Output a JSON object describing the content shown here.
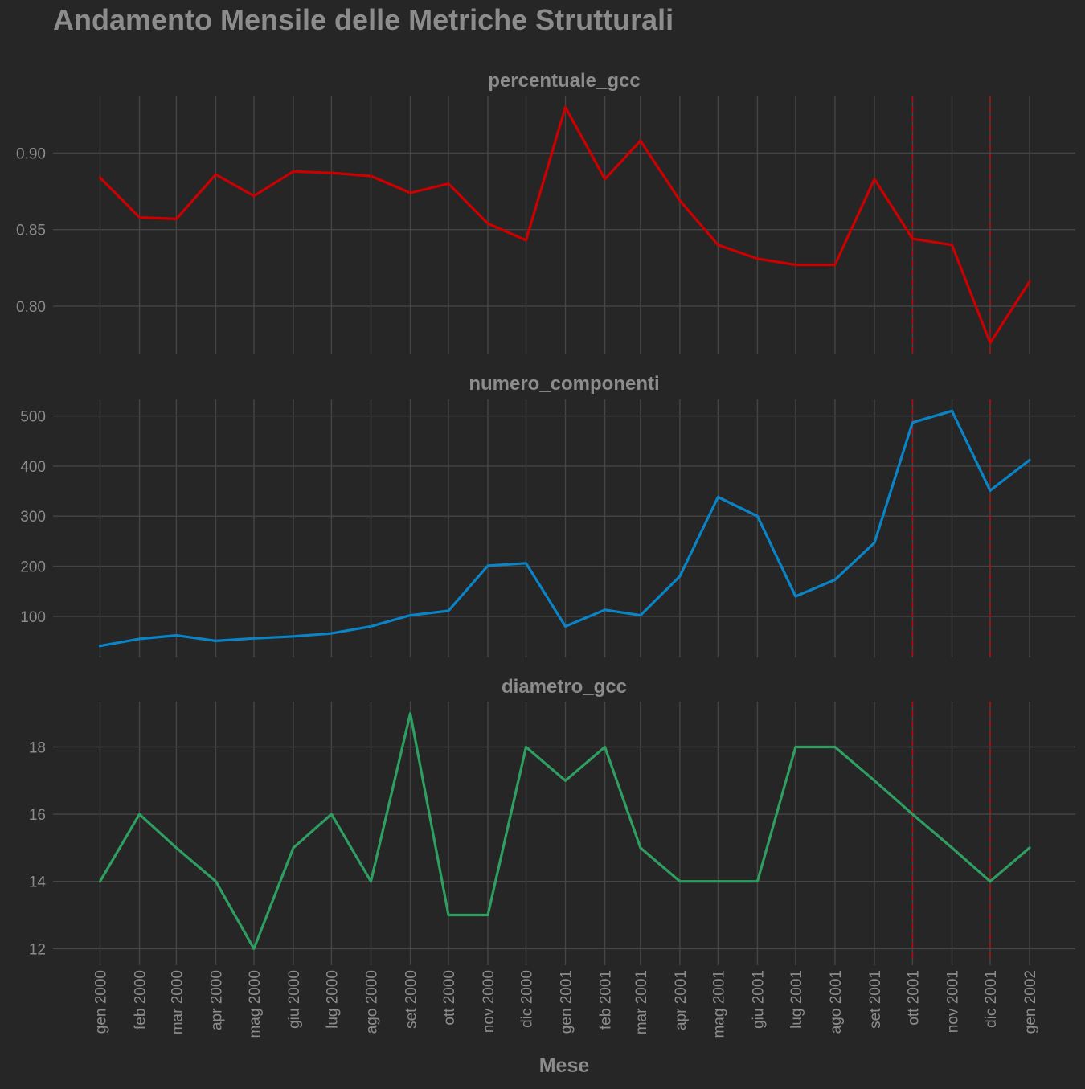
{
  "chart_data": {
    "type": "line",
    "title": "Andamento Mensile delle Metriche Strutturali",
    "xlabel": "Mese",
    "grid": true,
    "categories": [
      "gen 2000",
      "feb 2000",
      "mar 2000",
      "apr 2000",
      "mag 2000",
      "giu 2000",
      "lug 2000",
      "ago 2000",
      "set 2000",
      "ott 2000",
      "nov 2000",
      "dic 2000",
      "gen 2001",
      "feb 2001",
      "mar 2001",
      "apr 2001",
      "mag 2001",
      "giu 2001",
      "lug 2001",
      "ago 2001",
      "set 2001",
      "ott 2001",
      "nov 2001",
      "dic 2001",
      "gen 2002"
    ],
    "x_dates": [
      "2000-01-01",
      "2000-02-01",
      "2000-03-01",
      "2000-04-01",
      "2000-05-01",
      "2000-06-01",
      "2000-07-01",
      "2000-08-01",
      "2000-09-01",
      "2000-10-01",
      "2000-11-01",
      "2000-12-01",
      "2001-01-01",
      "2001-02-01",
      "2001-03-01",
      "2001-04-01",
      "2001-05-01",
      "2001-06-01",
      "2001-07-01",
      "2001-08-01",
      "2001-09-01",
      "2001-10-01",
      "2001-11-01",
      "2001-12-01",
      "2002-01-01"
    ],
    "markers": [
      "2001-10-01",
      "2001-12-01"
    ],
    "marker_color": "#cc0000",
    "panels": [
      {
        "name": "percentuale_gcc",
        "color": "#cc0000",
        "ylim": [
          0.769,
          0.937
        ],
        "ticks": [
          0.8,
          0.85,
          0.9
        ],
        "tick_labels": [
          "0.80",
          "0.85",
          "0.90"
        ],
        "values": [
          0.884,
          0.858,
          0.857,
          0.886,
          0.872,
          0.888,
          0.887,
          0.885,
          0.874,
          0.88,
          0.854,
          0.843,
          0.93,
          0.883,
          0.908,
          0.869,
          0.84,
          0.831,
          0.827,
          0.827,
          0.883,
          0.844,
          0.84,
          0.776,
          0.816
        ]
      },
      {
        "name": "numero_componenti",
        "color": "#0a84c6",
        "ylim": [
          18,
          533
        ],
        "ticks": [
          100,
          200,
          300,
          400,
          500
        ],
        "tick_labels": [
          "100",
          "200",
          "300",
          "400",
          "500"
        ],
        "values": [
          41,
          55,
          62,
          51,
          56,
          60,
          66,
          80,
          102,
          111,
          201,
          206,
          80,
          113,
          102,
          180,
          338,
          300,
          140,
          173,
          247,
          487,
          510,
          351,
          412
        ]
      },
      {
        "name": "diametro_gcc",
        "color": "#2e9e61",
        "ylim": [
          11.65,
          19.35
        ],
        "ticks": [
          12,
          14,
          16,
          18
        ],
        "tick_labels": [
          "12",
          "14",
          "16",
          "18"
        ],
        "values": [
          14,
          16,
          15,
          14,
          12,
          15,
          16,
          14,
          19,
          13,
          13,
          18,
          17,
          18,
          15,
          14,
          14,
          14,
          18,
          18,
          17,
          16,
          15,
          14,
          15
        ]
      }
    ]
  }
}
